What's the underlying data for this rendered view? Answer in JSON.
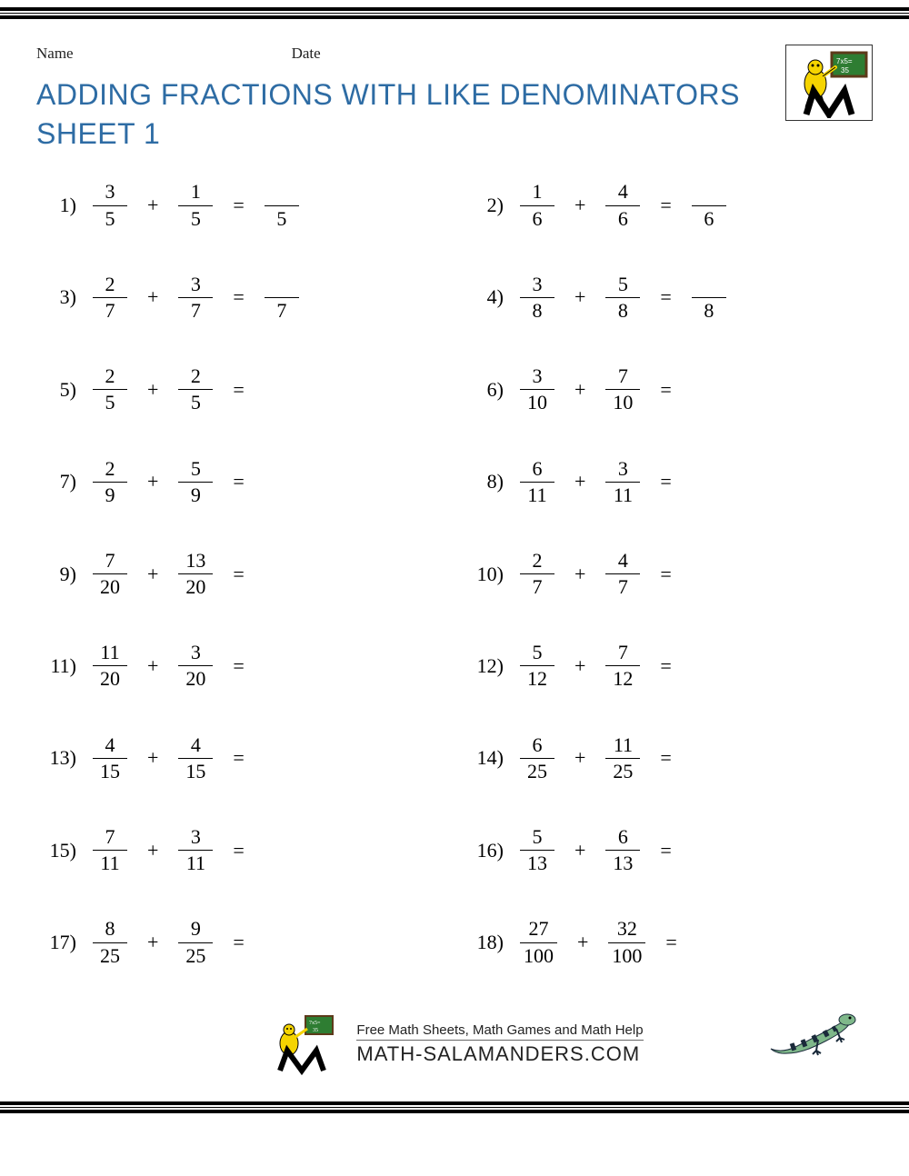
{
  "meta": {
    "name_label": "Name",
    "date_label": "Date"
  },
  "title": {
    "line1": "ADDING FRACTIONS WITH LIKE DENOMINATORS",
    "line2": "SHEET 1"
  },
  "colors": {
    "title": "#2e6ca4",
    "text": "#000000",
    "background": "#ffffff"
  },
  "typography": {
    "title_fontsize": 32,
    "body_fontsize": 22,
    "meta_fontsize": 17
  },
  "operators": {
    "plus": "+",
    "equals": "="
  },
  "problems": [
    {
      "n": "1)",
      "a_num": "3",
      "a_den": "5",
      "b_num": "1",
      "b_den": "5",
      "ans_den": "5"
    },
    {
      "n": "2)",
      "a_num": "1",
      "a_den": "6",
      "b_num": "4",
      "b_den": "6",
      "ans_den": "6"
    },
    {
      "n": "3)",
      "a_num": "2",
      "a_den": "7",
      "b_num": "3",
      "b_den": "7",
      "ans_den": "7"
    },
    {
      "n": "4)",
      "a_num": "3",
      "a_den": "8",
      "b_num": "5",
      "b_den": "8",
      "ans_den": "8"
    },
    {
      "n": "5)",
      "a_num": "2",
      "a_den": "5",
      "b_num": "2",
      "b_den": "5",
      "ans_den": null
    },
    {
      "n": "6)",
      "a_num": "3",
      "a_den": "10",
      "b_num": "7",
      "b_den": "10",
      "ans_den": null
    },
    {
      "n": "7)",
      "a_num": "2",
      "a_den": "9",
      "b_num": "5",
      "b_den": "9",
      "ans_den": null
    },
    {
      "n": "8)",
      "a_num": "6",
      "a_den": "11",
      "b_num": "3",
      "b_den": "11",
      "ans_den": null
    },
    {
      "n": "9)",
      "a_num": "7",
      "a_den": "20",
      "b_num": "13",
      "b_den": "20",
      "ans_den": null
    },
    {
      "n": "10)",
      "a_num": "2",
      "a_den": "7",
      "b_num": "4",
      "b_den": "7",
      "ans_den": null
    },
    {
      "n": "11)",
      "a_num": "11",
      "a_den": "20",
      "b_num": "3",
      "b_den": "20",
      "ans_den": null
    },
    {
      "n": "12)",
      "a_num": "5",
      "a_den": "12",
      "b_num": "7",
      "b_den": "12",
      "ans_den": null
    },
    {
      "n": "13)",
      "a_num": "4",
      "a_den": "15",
      "b_num": "4",
      "b_den": "15",
      "ans_den": null
    },
    {
      "n": "14)",
      "a_num": "6",
      "a_den": "25",
      "b_num": "11",
      "b_den": "25",
      "ans_den": null
    },
    {
      "n": "15)",
      "a_num": "7",
      "a_den": "11",
      "b_num": "3",
      "b_den": "11",
      "ans_den": null
    },
    {
      "n": "16)",
      "a_num": "5",
      "a_den": "13",
      "b_num": "6",
      "b_den": "13",
      "ans_den": null
    },
    {
      "n": "17)",
      "a_num": "8",
      "a_den": "25",
      "b_num": "9",
      "b_den": "25",
      "ans_den": null
    },
    {
      "n": "18)",
      "a_num": "27",
      "a_den": "100",
      "b_num": "32",
      "b_den": "100",
      "ans_den": null
    }
  ],
  "footer": {
    "line1": "Free Math Sheets, Math Games and Math Help",
    "line2": "MATH-SALAMANDERS.COM"
  },
  "logo": {
    "board_text": "7x5=35",
    "salamander_color": "#f5d400",
    "m_color": "#000000"
  },
  "lizard": {
    "body_color": "#7fb88a",
    "stripe_color": "#1a2a3a"
  }
}
